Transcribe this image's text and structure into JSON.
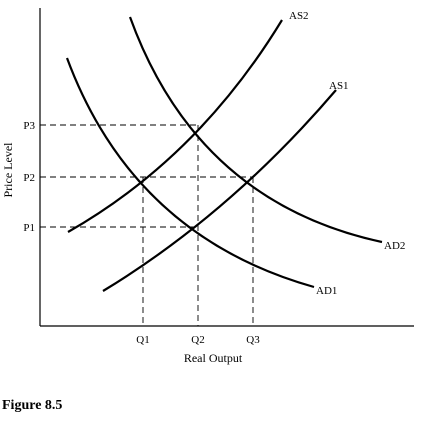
{
  "figure_caption": "Figure 8.5",
  "axes": {
    "x_label": "Real Output",
    "y_label": "Price Level",
    "x_ticks": [
      "Q1",
      "Q2",
      "Q3"
    ],
    "y_ticks": [
      "P1",
      "P2",
      "P3"
    ]
  },
  "curves": [
    {
      "id": "AS1",
      "label": "AS1"
    },
    {
      "id": "AS2",
      "label": "AS2"
    },
    {
      "id": "AD1",
      "label": "AD1"
    },
    {
      "id": "AD2",
      "label": "AD2"
    }
  ],
  "equilibria": [
    {
      "curves": [
        "AS1",
        "AD1"
      ],
      "price": "P1",
      "output": "Q2"
    },
    {
      "curves": [
        "AS2",
        "AD1"
      ],
      "price": "P2",
      "output": "Q1"
    },
    {
      "curves": [
        "AS1",
        "AD2"
      ],
      "price": "P2",
      "output": "Q3"
    },
    {
      "curves": [
        "AS2",
        "AD2"
      ],
      "price": "P3",
      "output": "Q2"
    }
  ]
}
